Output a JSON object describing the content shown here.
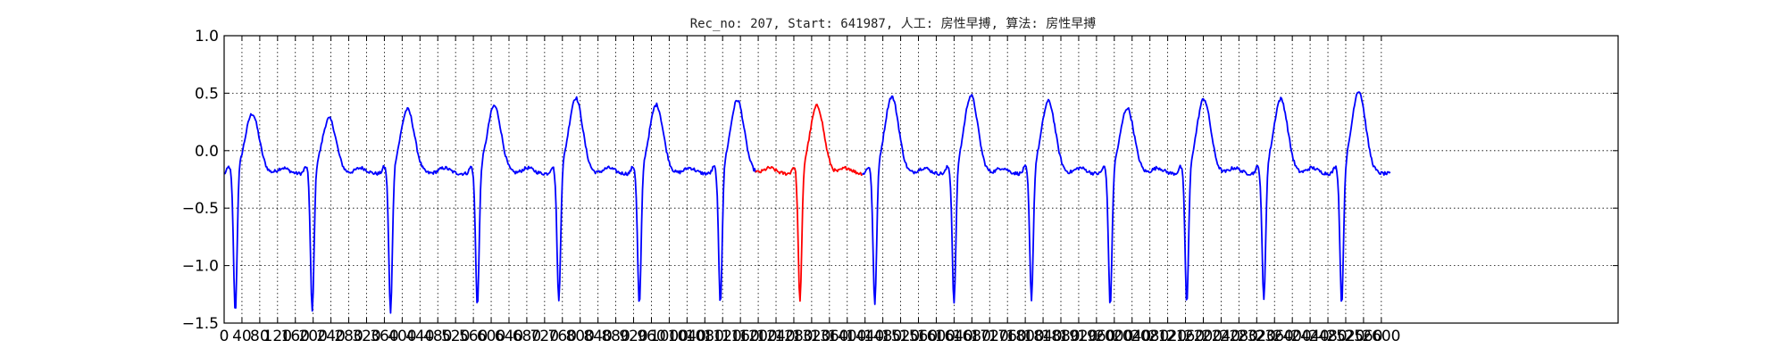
{
  "chart_data": {
    "type": "line",
    "title": "Rec_no: 207, Start: 641987, 人工: 房性早搏, 算法: 房性早搏",
    "xlabel": "",
    "ylabel": "",
    "xlim": [
      0,
      3132
    ],
    "ylim": [
      -1.5,
      1.0
    ],
    "y_ticks": [
      -1.5,
      -1.0,
      -0.5,
      0.0,
      0.5,
      1.0
    ],
    "y_tick_labels": [
      "−1.5",
      "−1.0",
      "−0.5",
      "0.0",
      "0.5",
      "1.0"
    ],
    "x_ticks": [
      0,
      40,
      80,
      120,
      160,
      200,
      240,
      280,
      320,
      360,
      400,
      440,
      480,
      520,
      560,
      600,
      640,
      680,
      720,
      760,
      800,
      840,
      880,
      920,
      960,
      1000,
      1040,
      1080,
      1120,
      1160,
      1200,
      1240,
      1280,
      1320,
      1360,
      1400,
      1440,
      1480,
      1520,
      1560,
      1600,
      1640,
      1680,
      1720,
      1760,
      1800,
      1840,
      1880,
      1920,
      1960,
      2000,
      2040,
      2080,
      2120,
      2160,
      2200,
      2240,
      2280,
      2320,
      2360,
      2400,
      2440,
      2480,
      2520,
      2560,
      2600
    ],
    "x_tick_labels": [
      "0",
      "40",
      "80",
      "120",
      "160",
      "200",
      "240",
      "280",
      "320",
      "360",
      "400",
      "440",
      "480",
      "520",
      "560",
      "600",
      "640",
      "680",
      "720",
      "760",
      "800",
      "840",
      "880",
      "920",
      "960",
      "1000",
      "1040",
      "1080",
      "1120",
      "1160",
      "1200",
      "1240",
      "1280",
      "1320",
      "1360",
      "1400",
      "1440",
      "1480",
      "1520",
      "1560",
      "1600",
      "1640",
      "1680",
      "1720",
      "1760",
      "1800",
      "1840",
      "1880",
      "1920",
      "1960",
      "2000",
      "2040",
      "2080",
      "2120",
      "2160",
      "2200",
      "2240",
      "2280",
      "2320",
      "2360",
      "2400",
      "2440",
      "2480",
      "2520",
      "2560",
      "2600"
    ],
    "grid": true,
    "beats": [
      {
        "t": 25,
        "min": -1.43,
        "peak": 0.3,
        "color": "#0000ff"
      },
      {
        "t": 198,
        "min": -1.42,
        "peak": 0.26,
        "color": "#0000ff"
      },
      {
        "t": 374,
        "min": -1.43,
        "peak": 0.34,
        "color": "#0000ff"
      },
      {
        "t": 569,
        "min": -1.37,
        "peak": 0.37,
        "color": "#0000ff"
      },
      {
        "t": 752,
        "min": -1.33,
        "peak": 0.44,
        "color": "#0000ff"
      },
      {
        "t": 933,
        "min": -1.37,
        "peak": 0.38,
        "color": "#0000ff"
      },
      {
        "t": 1115,
        "min": -1.35,
        "peak": 0.42,
        "color": "#0000ff"
      },
      {
        "t": 1294,
        "min": -1.33,
        "peak": 0.37,
        "color": "#ff0000"
      },
      {
        "t": 1462,
        "min": -1.36,
        "peak": 0.45,
        "color": "#0000ff"
      },
      {
        "t": 1640,
        "min": -1.35,
        "peak": 0.46,
        "color": "#0000ff"
      },
      {
        "t": 1814,
        "min": -1.31,
        "peak": 0.41,
        "color": "#0000ff"
      },
      {
        "t": 1991,
        "min": -1.37,
        "peak": 0.35,
        "color": "#0000ff"
      },
      {
        "t": 2163,
        "min": -1.36,
        "peak": 0.43,
        "color": "#0000ff"
      },
      {
        "t": 2336,
        "min": -1.32,
        "peak": 0.43,
        "color": "#0000ff"
      },
      {
        "t": 2511,
        "min": -1.36,
        "peak": 0.5,
        "color": "#0000ff"
      }
    ],
    "series_end_x": 2620,
    "highlight": {
      "color": "#ff0000",
      "x_start": 1194,
      "x_end": 1432
    }
  }
}
